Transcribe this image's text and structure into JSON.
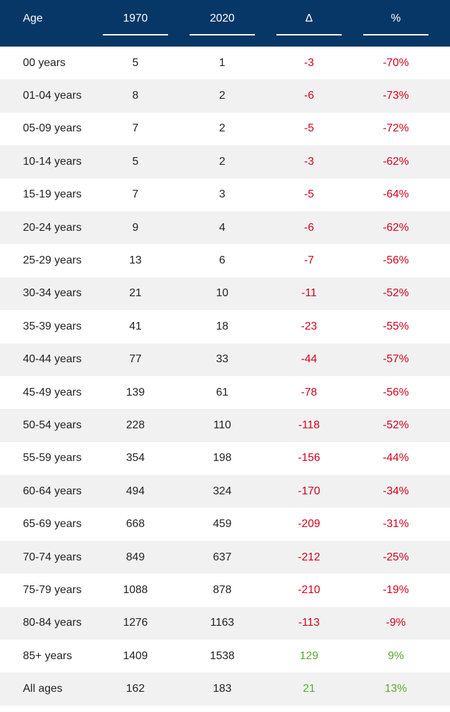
{
  "colors": {
    "header_bg": "#063767",
    "negative": "#d0021b",
    "positive": "#5aa832",
    "stripe": "#f1f1f1"
  },
  "header": {
    "age": "Age",
    "y1970": "1970",
    "y2020": "2020",
    "delta": "Δ",
    "percent": "%"
  },
  "rows": [
    {
      "age": "00 years",
      "y1970": "5",
      "y2020": "1",
      "delta": "-3",
      "percent": "-70%"
    },
    {
      "age": "01-04 years",
      "y1970": "8",
      "y2020": "2",
      "delta": "-6",
      "percent": "-73%"
    },
    {
      "age": "05-09 years",
      "y1970": "7",
      "y2020": "2",
      "delta": "-5",
      "percent": "-72%"
    },
    {
      "age": "10-14 years",
      "y1970": "5",
      "y2020": "2",
      "delta": "-3",
      "percent": "-62%"
    },
    {
      "age": "15-19 years",
      "y1970": "7",
      "y2020": "3",
      "delta": "-5",
      "percent": "-64%"
    },
    {
      "age": "20-24 years",
      "y1970": "9",
      "y2020": "4",
      "delta": "-6",
      "percent": "-62%"
    },
    {
      "age": "25-29 years",
      "y1970": "13",
      "y2020": "6",
      "delta": "-7",
      "percent": "-56%"
    },
    {
      "age": "30-34 years",
      "y1970": "21",
      "y2020": "10",
      "delta": "-11",
      "percent": "-52%"
    },
    {
      "age": "35-39 years",
      "y1970": "41",
      "y2020": "18",
      "delta": "-23",
      "percent": "-55%"
    },
    {
      "age": "40-44 years",
      "y1970": "77",
      "y2020": "33",
      "delta": "-44",
      "percent": "-57%"
    },
    {
      "age": "45-49 years",
      "y1970": "139",
      "y2020": "61",
      "delta": "-78",
      "percent": "-56%"
    },
    {
      "age": "50-54 years",
      "y1970": "228",
      "y2020": "110",
      "delta": "-118",
      "percent": "-52%"
    },
    {
      "age": "55-59 years",
      "y1970": "354",
      "y2020": "198",
      "delta": "-156",
      "percent": "-44%"
    },
    {
      "age": "60-64 years",
      "y1970": "494",
      "y2020": "324",
      "delta": "-170",
      "percent": "-34%"
    },
    {
      "age": "65-69 years",
      "y1970": "668",
      "y2020": "459",
      "delta": "-209",
      "percent": "-31%"
    },
    {
      "age": "70-74 years",
      "y1970": "849",
      "y2020": "637",
      "delta": "-212",
      "percent": "-25%"
    },
    {
      "age": "75-79 years",
      "y1970": "1088",
      "y2020": "878",
      "delta": "-210",
      "percent": "-19%"
    },
    {
      "age": "80-84 years",
      "y1970": "1276",
      "y2020": "1163",
      "delta": "-113",
      "percent": "-9%"
    },
    {
      "age": "85+ years",
      "y1970": "1409",
      "y2020": "1538",
      "delta": "129",
      "percent": "9%"
    },
    {
      "age": "All ages",
      "y1970": "162",
      "y2020": "183",
      "delta": "21",
      "percent": "13%"
    }
  ]
}
